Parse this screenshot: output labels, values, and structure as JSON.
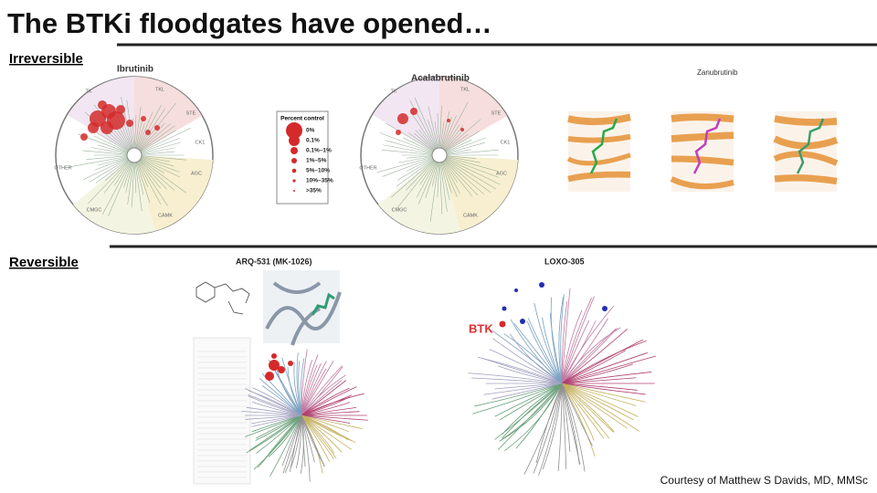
{
  "title": "The BTKi floodgates have opened…",
  "irreversible": {
    "label": "Irreversible",
    "drugs": [
      "Ibrutinib",
      "Acalabrutinib",
      "Zanubrutinib"
    ],
    "legend": {
      "title": "Percent control",
      "items": [
        "0%",
        "0.1%",
        "0.1%–1%",
        "1%–5%",
        "5%–10%",
        "10%–35%",
        ">35%"
      ]
    }
  },
  "kinome_groups": [
    "TK",
    "TKL",
    "STE",
    "CK1",
    "AGC",
    "CAMK",
    "CMGC",
    "OTHER"
  ],
  "reversible": {
    "label": "Reversible",
    "drugs": [
      "ARQ-531 (MK-1026)",
      "LOXO-305"
    ],
    "target_label": "BTK"
  },
  "credit": "Courtesy of Matthew S Davids, MD, MMSc"
}
